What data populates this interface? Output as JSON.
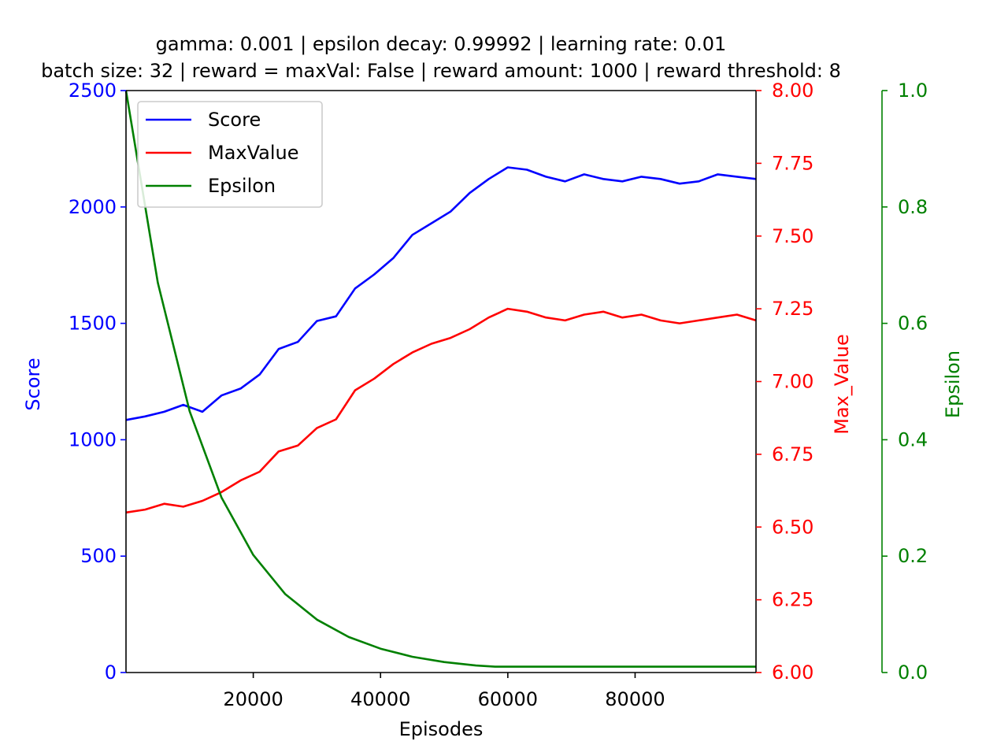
{
  "chart_data": {
    "type": "line",
    "title_lines": [
      "gamma: 0.001 | epsilon decay: 0.99992 | learning rate: 0.01",
      "batch size: 32 | reward = maxVal: False | reward amount: 1000 | reward threshold: 8"
    ],
    "xlabel": "Episodes",
    "xlim": [
      0,
      99000
    ],
    "x_ticks": [
      20000,
      40000,
      60000,
      80000
    ],
    "x_tick_labels": [
      "20000",
      "40000",
      "60000",
      "80000"
    ],
    "grid": false,
    "legend_position": "top-left",
    "axes": [
      {
        "id": "score",
        "side": "left",
        "label": "Score",
        "color": "#0000ff",
        "lim": [
          0,
          2500
        ],
        "ticks": [
          0,
          500,
          1000,
          1500,
          2000,
          2500
        ],
        "tick_labels": [
          "0",
          "500",
          "1000",
          "1500",
          "2000",
          "2500"
        ]
      },
      {
        "id": "maxval",
        "side": "right",
        "label": "Max_Value",
        "color": "#ff0000",
        "lim": [
          6.0,
          8.0
        ],
        "ticks": [
          6.0,
          6.25,
          6.5,
          6.75,
          7.0,
          7.25,
          7.5,
          7.75,
          8.0
        ],
        "tick_labels": [
          "6.00",
          "6.25",
          "6.50",
          "6.75",
          "7.00",
          "7.25",
          "7.50",
          "7.75",
          "8.00"
        ]
      },
      {
        "id": "epsilon",
        "side": "right-offset",
        "label": "Epsilon",
        "color": "#008000",
        "lim": [
          0.0,
          1.0
        ],
        "ticks": [
          0.0,
          0.2,
          0.4,
          0.6,
          0.8,
          1.0
        ],
        "tick_labels": [
          "0.0",
          "0.2",
          "0.4",
          "0.6",
          "0.8",
          "1.0"
        ]
      }
    ],
    "series": [
      {
        "name": "Score",
        "axis": "score",
        "color": "#0000ff",
        "x": [
          0,
          3000,
          6000,
          9000,
          12000,
          15000,
          18000,
          21000,
          24000,
          27000,
          30000,
          33000,
          36000,
          39000,
          42000,
          45000,
          48000,
          51000,
          54000,
          57000,
          60000,
          63000,
          66000,
          69000,
          72000,
          75000,
          78000,
          81000,
          84000,
          87000,
          90000,
          93000,
          96000,
          99000
        ],
        "y": [
          1085,
          1100,
          1120,
          1150,
          1120,
          1190,
          1220,
          1280,
          1390,
          1420,
          1510,
          1530,
          1650,
          1710,
          1780,
          1880,
          1930,
          1980,
          2060,
          2120,
          2170,
          2160,
          2130,
          2110,
          2140,
          2120,
          2110,
          2130,
          2120,
          2100,
          2110,
          2140,
          2130,
          2120
        ]
      },
      {
        "name": "MaxValue",
        "axis": "maxval",
        "color": "#ff0000",
        "x": [
          0,
          3000,
          6000,
          9000,
          12000,
          15000,
          18000,
          21000,
          24000,
          27000,
          30000,
          33000,
          36000,
          39000,
          42000,
          45000,
          48000,
          51000,
          54000,
          57000,
          60000,
          63000,
          66000,
          69000,
          72000,
          75000,
          78000,
          81000,
          84000,
          87000,
          90000,
          93000,
          96000,
          99000
        ],
        "y": [
          6.55,
          6.56,
          6.58,
          6.57,
          6.59,
          6.62,
          6.66,
          6.69,
          6.76,
          6.78,
          6.84,
          6.87,
          6.97,
          7.01,
          7.06,
          7.1,
          7.13,
          7.15,
          7.18,
          7.22,
          7.25,
          7.24,
          7.22,
          7.21,
          7.23,
          7.24,
          7.22,
          7.23,
          7.21,
          7.2,
          7.21,
          7.22,
          7.23,
          7.21
        ]
      },
      {
        "name": "Epsilon",
        "axis": "epsilon",
        "color": "#008000",
        "x": [
          0,
          5000,
          10000,
          15000,
          20000,
          25000,
          30000,
          35000,
          40000,
          45000,
          50000,
          55000,
          58000,
          65000,
          75000,
          85000,
          99000
        ],
        "y": [
          1.0,
          0.67,
          0.449,
          0.301,
          0.202,
          0.135,
          0.091,
          0.061,
          0.041,
          0.027,
          0.018,
          0.012,
          0.01,
          0.01,
          0.01,
          0.01,
          0.01
        ]
      }
    ]
  }
}
